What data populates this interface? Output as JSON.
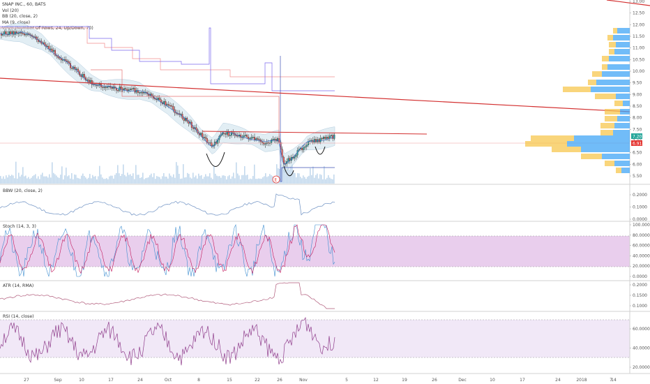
{
  "legend": {
    "symbol": "SNAP INC., 60, BATS",
    "vol": "Vol (20)",
    "bb": "BB (20, close, 2)",
    "ma": "MA (9, close)",
    "vpvr": "VPVR (Number Of Rows, 24, Up/Down, 70)"
  },
  "panes": {
    "bbw": "BBW (20, close, 2)",
    "stoch": "Stoch (14, 3, 3)",
    "atr": "ATR (14, RMA)",
    "rsi": "RSI (14, close)"
  },
  "price_axis": [
    "13.00",
    "12.50",
    "12.00",
    "11.50",
    "11.00",
    "10.50",
    "10.00",
    "9.50",
    "9.00",
    "8.50",
    "8.00",
    "7.50",
    "7.00",
    "6.50",
    "6.00",
    "5.50"
  ],
  "price_badges": {
    "last": "7.20",
    "line": "6.91"
  },
  "bbw_axis": [
    "0.2000",
    "0.1000",
    "0.0000"
  ],
  "stoch_axis": [
    "100.0000",
    "80.0000",
    "60.0000",
    "40.0000",
    "20.0000",
    "0.0000"
  ],
  "atr_axis": [
    "0.2000",
    "0.1500",
    "0.1000"
  ],
  "rsi_axis": [
    "60.0000",
    "40.0000",
    "20.0000"
  ],
  "time_axis": [
    "27",
    "Sep",
    "10",
    "17",
    "24",
    "Oct",
    "8",
    "15",
    "22",
    "26",
    "Nov",
    "5",
    "12",
    "19",
    "26",
    "Dec",
    "10",
    "17",
    "24",
    "2018",
    "7",
    "14"
  ],
  "earnings_marker": "E",
  "colors": {
    "up": "#26a69a",
    "down": "#ef5350",
    "trend": "#d32f2f",
    "vpvr_up": "#42a5f5",
    "vpvr_down": "#f6c343",
    "stoch_band": "#e1bee7",
    "rsi_band": "#ede2f5",
    "bb_fill": "#cfe3ee",
    "line": "#b05a7a"
  }
}
